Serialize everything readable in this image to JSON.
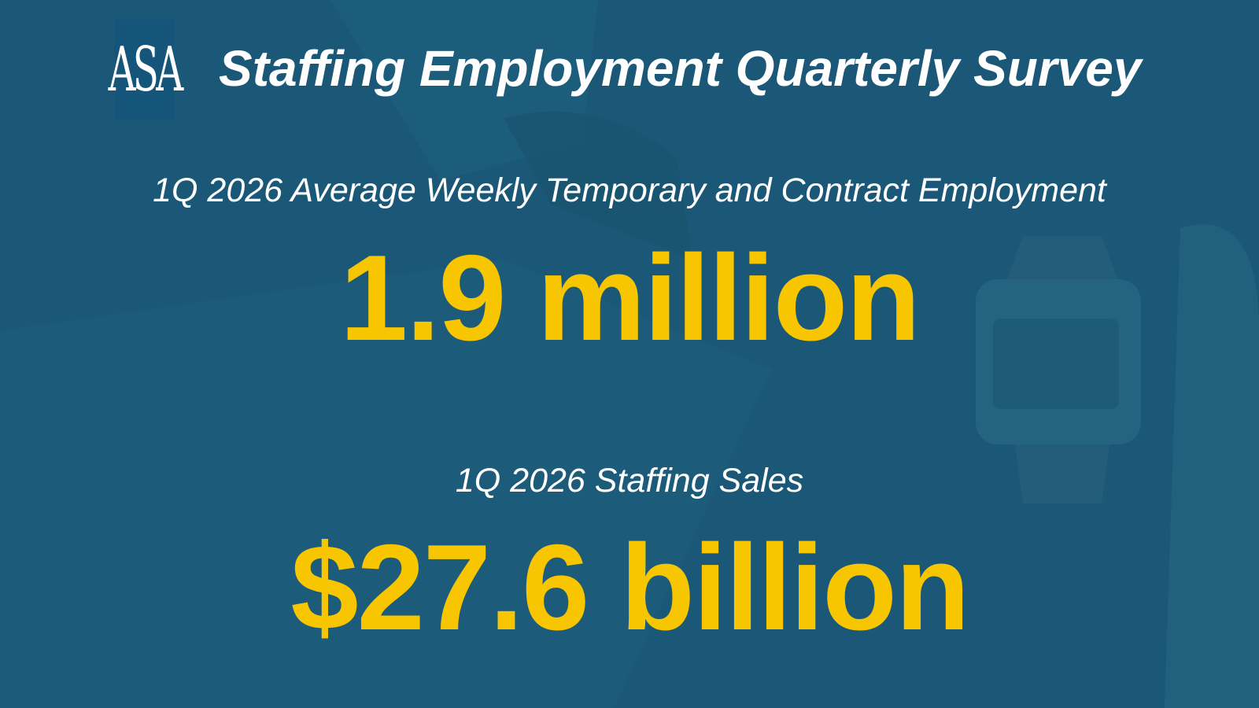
{
  "logo": "ASA",
  "title": "Staffing Employment Quarterly Survey",
  "stats": [
    {
      "label": "1Q 2026 Average Weekly Temporary and Contract Employment",
      "value": "1.9 million"
    },
    {
      "label": "1Q 2026 Staffing Sales",
      "value": "$27.6 billion"
    }
  ]
}
